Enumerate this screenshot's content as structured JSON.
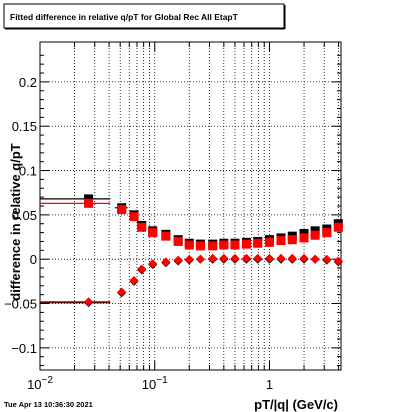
{
  "window": {
    "title_box": "Fitted difference in relative q/pT for Global Rec All EtapT",
    "timestamp": "Tue Apr 13 10:36:30 2021"
  },
  "colors": {
    "series_black": "#000000",
    "series_red": "#ff0000",
    "background": "#ffffff",
    "grid": "#000000"
  },
  "chart_data": {
    "type": "scatter",
    "title": "Fitted difference in relative q/pT for Global Rec All EtapT",
    "xlabel": "pT/|q| (GeV/c)",
    "ylabel": "difference in relative q/pT",
    "xscale": "log",
    "xlim": [
      0.01,
      4.2
    ],
    "ylim": [
      -0.125,
      0.245
    ],
    "grid": true,
    "legend": "none",
    "x_ticks": [
      {
        "value": 0.01,
        "label": "10",
        "exp": "−2"
      },
      {
        "value": 0.1,
        "label": "10",
        "exp": "−1"
      },
      {
        "value": 1,
        "label": "1",
        "exp": ""
      }
    ],
    "y_ticks": [
      {
        "value": -0.1,
        "label": "−0.1"
      },
      {
        "value": -0.05,
        "label": "−0.05"
      },
      {
        "value": 0,
        "label": "0"
      },
      {
        "value": 0.05,
        "label": "0.05"
      },
      {
        "value": 0.1,
        "label": "0.1"
      },
      {
        "value": 0.15,
        "label": "0.15"
      },
      {
        "value": 0.2,
        "label": "0.2"
      }
    ],
    "series": [
      {
        "color": "#000000",
        "marker": "square",
        "points": [
          {
            "x": 0.0265,
            "y": 0.068,
            "xlo": 0.01,
            "xhi": 0.041
          },
          {
            "x": 0.0515,
            "y": 0.058,
            "xlo": 0.045,
            "xhi": 0.058
          },
          {
            "x": 0.066,
            "y": 0.05
          },
          {
            "x": 0.077,
            "y": 0.038
          },
          {
            "x": 0.096,
            "y": 0.032
          },
          {
            "x": 0.125,
            "y": 0.028
          },
          {
            "x": 0.16,
            "y": 0.022
          },
          {
            "x": 0.2,
            "y": 0.018
          },
          {
            "x": 0.25,
            "y": 0.017
          },
          {
            "x": 0.32,
            "y": 0.017
          },
          {
            "x": 0.4,
            "y": 0.018
          },
          {
            "x": 0.5,
            "y": 0.018
          },
          {
            "x": 0.63,
            "y": 0.019
          },
          {
            "x": 0.79,
            "y": 0.02
          },
          {
            "x": 1.0,
            "y": 0.022
          },
          {
            "x": 1.26,
            "y": 0.024
          },
          {
            "x": 1.58,
            "y": 0.026
          },
          {
            "x": 2.0,
            "y": 0.029
          },
          {
            "x": 2.5,
            "y": 0.032
          },
          {
            "x": 3.16,
            "y": 0.034
          },
          {
            "x": 3.98,
            "y": 0.04
          }
        ]
      },
      {
        "color": "#ff0000",
        "marker": "square",
        "points": [
          {
            "x": 0.0265,
            "y": 0.063,
            "xlo": 0.01,
            "xhi": 0.041
          },
          {
            "x": 0.0515,
            "y": 0.056
          },
          {
            "x": 0.066,
            "y": 0.048
          },
          {
            "x": 0.077,
            "y": 0.036
          },
          {
            "x": 0.096,
            "y": 0.03
          },
          {
            "x": 0.125,
            "y": 0.026
          },
          {
            "x": 0.16,
            "y": 0.02
          },
          {
            "x": 0.2,
            "y": 0.016
          },
          {
            "x": 0.25,
            "y": 0.015
          },
          {
            "x": 0.32,
            "y": 0.015
          },
          {
            "x": 0.4,
            "y": 0.016
          },
          {
            "x": 0.5,
            "y": 0.016
          },
          {
            "x": 0.63,
            "y": 0.017
          },
          {
            "x": 0.79,
            "y": 0.018
          },
          {
            "x": 1.0,
            "y": 0.019
          },
          {
            "x": 1.26,
            "y": 0.021
          },
          {
            "x": 1.58,
            "y": 0.022
          },
          {
            "x": 2.0,
            "y": 0.024
          },
          {
            "x": 2.5,
            "y": 0.027
          },
          {
            "x": 3.16,
            "y": 0.03
          },
          {
            "x": 3.98,
            "y": 0.036
          }
        ]
      },
      {
        "color": "#000000",
        "marker": "diamond",
        "points": [
          {
            "x": 0.0265,
            "y": -0.049,
            "xlo": 0.01,
            "xhi": 0.041
          },
          {
            "x": 0.0515,
            "y": -0.038
          },
          {
            "x": 0.066,
            "y": -0.025
          },
          {
            "x": 0.077,
            "y": -0.012
          },
          {
            "x": 0.096,
            "y": -0.006
          },
          {
            "x": 0.125,
            "y": -0.004
          },
          {
            "x": 0.16,
            "y": -0.002
          },
          {
            "x": 0.2,
            "y": -0.001
          },
          {
            "x": 0.25,
            "y": 0.0
          },
          {
            "x": 0.32,
            "y": 0.0
          },
          {
            "x": 0.4,
            "y": 0.0
          },
          {
            "x": 0.5,
            "y": 0.0
          },
          {
            "x": 0.63,
            "y": 0.0
          },
          {
            "x": 0.79,
            "y": 0.0
          },
          {
            "x": 1.0,
            "y": 0.0
          },
          {
            "x": 1.26,
            "y": 0.0
          },
          {
            "x": 1.58,
            "y": 0.0
          },
          {
            "x": 2.0,
            "y": 0.0
          },
          {
            "x": 2.5,
            "y": 0.0
          },
          {
            "x": 3.16,
            "y": -0.001
          },
          {
            "x": 3.98,
            "y": -0.003
          }
        ]
      },
      {
        "color": "#ff0000",
        "marker": "diamond",
        "points": [
          {
            "x": 0.0265,
            "y": -0.048,
            "xlo": 0.01,
            "xhi": 0.041
          },
          {
            "x": 0.0515,
            "y": -0.037
          },
          {
            "x": 0.066,
            "y": -0.024
          },
          {
            "x": 0.077,
            "y": -0.011
          },
          {
            "x": 0.096,
            "y": -0.005
          },
          {
            "x": 0.125,
            "y": -0.003
          },
          {
            "x": 0.16,
            "y": -0.001
          },
          {
            "x": 0.2,
            "y": 0.0
          },
          {
            "x": 0.25,
            "y": 0.0
          },
          {
            "x": 0.32,
            "y": 0.001
          },
          {
            "x": 0.4,
            "y": 0.001
          },
          {
            "x": 0.5,
            "y": 0.001
          },
          {
            "x": 0.63,
            "y": 0.001
          },
          {
            "x": 0.79,
            "y": 0.001
          },
          {
            "x": 1.0,
            "y": 0.001
          },
          {
            "x": 1.26,
            "y": 0.001
          },
          {
            "x": 1.58,
            "y": 0.001
          },
          {
            "x": 2.0,
            "y": 0.001
          },
          {
            "x": 2.5,
            "y": 0.0
          },
          {
            "x": 3.16,
            "y": 0.0
          },
          {
            "x": 3.98,
            "y": -0.002
          }
        ]
      }
    ]
  }
}
